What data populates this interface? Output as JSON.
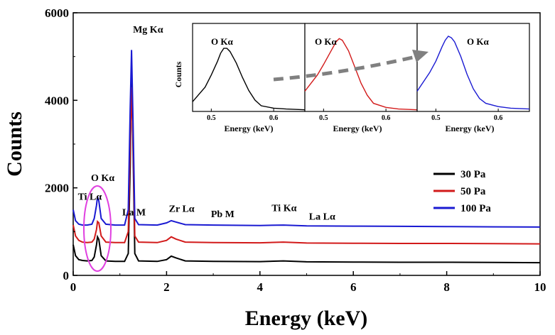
{
  "chart_data": {
    "type": "line",
    "xlabel": "Energy (keV)",
    "ylabel": "Counts",
    "xlim": [
      0,
      10
    ],
    "ylim": [
      0,
      6000
    ],
    "x_ticks": [
      "0",
      "2",
      "4",
      "6",
      "8",
      "10"
    ],
    "y_ticks": [
      "0",
      "2000",
      "4000",
      "6000"
    ],
    "grid": false,
    "legend_position": "right",
    "series": [
      {
        "name": "30 Pa",
        "color": "#000000",
        "points": [
          [
            0,
            700
          ],
          [
            0.05,
            450
          ],
          [
            0.12,
            360
          ],
          [
            0.2,
            340
          ],
          [
            0.3,
            330
          ],
          [
            0.4,
            340
          ],
          [
            0.45,
            420
          ],
          [
            0.5,
            700
          ],
          [
            0.52,
            880
          ],
          [
            0.55,
            820
          ],
          [
            0.6,
            450
          ],
          [
            0.7,
            330
          ],
          [
            0.9,
            320
          ],
          [
            1.1,
            320
          ],
          [
            1.18,
            500
          ],
          [
            1.22,
            2500
          ],
          [
            1.25,
            4700
          ],
          [
            1.28,
            3000
          ],
          [
            1.32,
            500
          ],
          [
            1.4,
            330
          ],
          [
            1.8,
            320
          ],
          [
            2.0,
            360
          ],
          [
            2.1,
            440
          ],
          [
            2.2,
            400
          ],
          [
            2.4,
            330
          ],
          [
            3,
            320
          ],
          [
            4,
            315
          ],
          [
            4.5,
            330
          ],
          [
            5,
            310
          ],
          [
            6,
            305
          ],
          [
            7,
            300
          ],
          [
            8,
            300
          ],
          [
            9,
            295
          ],
          [
            10,
            290
          ]
        ]
      },
      {
        "name": "50 Pa",
        "color": "#d21a1a",
        "points": [
          [
            0,
            1150
          ],
          [
            0.05,
            900
          ],
          [
            0.12,
            800
          ],
          [
            0.2,
            760
          ],
          [
            0.3,
            750
          ],
          [
            0.4,
            760
          ],
          [
            0.45,
            830
          ],
          [
            0.5,
            1050
          ],
          [
            0.52,
            1230
          ],
          [
            0.55,
            1200
          ],
          [
            0.6,
            900
          ],
          [
            0.7,
            760
          ],
          [
            0.9,
            750
          ],
          [
            1.1,
            750
          ],
          [
            1.18,
            1000
          ],
          [
            1.22,
            3000
          ],
          [
            1.25,
            4300
          ],
          [
            1.28,
            3200
          ],
          [
            1.32,
            900
          ],
          [
            1.4,
            760
          ],
          [
            1.8,
            750
          ],
          [
            2.0,
            800
          ],
          [
            2.1,
            880
          ],
          [
            2.2,
            830
          ],
          [
            2.4,
            760
          ],
          [
            3,
            750
          ],
          [
            4,
            745
          ],
          [
            4.5,
            760
          ],
          [
            5,
            740
          ],
          [
            6,
            735
          ],
          [
            7,
            730
          ],
          [
            8,
            730
          ],
          [
            9,
            725
          ],
          [
            10,
            720
          ]
        ]
      },
      {
        "name": "100 Pa",
        "color": "#1a1ad2",
        "points": [
          [
            0,
            1500
          ],
          [
            0.05,
            1250
          ],
          [
            0.12,
            1170
          ],
          [
            0.2,
            1150
          ],
          [
            0.3,
            1150
          ],
          [
            0.4,
            1170
          ],
          [
            0.45,
            1300
          ],
          [
            0.5,
            1600
          ],
          [
            0.52,
            1800
          ],
          [
            0.55,
            1700
          ],
          [
            0.6,
            1300
          ],
          [
            0.7,
            1170
          ],
          [
            0.9,
            1150
          ],
          [
            1.1,
            1150
          ],
          [
            1.18,
            1500
          ],
          [
            1.22,
            3800
          ],
          [
            1.25,
            5150
          ],
          [
            1.28,
            3600
          ],
          [
            1.32,
            1300
          ],
          [
            1.4,
            1160
          ],
          [
            1.8,
            1150
          ],
          [
            2.0,
            1200
          ],
          [
            2.1,
            1250
          ],
          [
            2.2,
            1220
          ],
          [
            2.4,
            1160
          ],
          [
            3,
            1150
          ],
          [
            4,
            1140
          ],
          [
            4.5,
            1150
          ],
          [
            5,
            1130
          ],
          [
            6,
            1125
          ],
          [
            7,
            1120
          ],
          [
            8,
            1115
          ],
          [
            9,
            1110
          ],
          [
            10,
            1105
          ]
        ]
      }
    ],
    "annotations": [
      {
        "text": "Mg Kα",
        "x": 1.28,
        "y": 5550
      },
      {
        "text": "O Kα",
        "x": 0.38,
        "y": 2160
      },
      {
        "text": "Ti Lα",
        "x": 0.1,
        "y": 1730
      },
      {
        "text": "La M",
        "x": 1.05,
        "y": 1370
      },
      {
        "text": "Zr Lα",
        "x": 2.05,
        "y": 1450
      },
      {
        "text": "Pb M",
        "x": 2.95,
        "y": 1330
      },
      {
        "text": "Ti Kα",
        "x": 4.25,
        "y": 1470
      },
      {
        "text": "La Lα",
        "x": 5.05,
        "y": 1270
      }
    ],
    "insets": [
      {
        "title": "O Kα",
        "ylabel": "Counts",
        "xlabel": "Energy (keV)",
        "xlim": [
          0.47,
          0.65
        ],
        "x_ticks": [
          "0.5",
          "0.6"
        ],
        "color": "#000000",
        "points": [
          [
            0.47,
            0.12
          ],
          [
            0.49,
            0.3
          ],
          [
            0.5,
            0.45
          ],
          [
            0.51,
            0.62
          ],
          [
            0.515,
            0.72
          ],
          [
            0.52,
            0.78
          ],
          [
            0.525,
            0.78
          ],
          [
            0.53,
            0.74
          ],
          [
            0.54,
            0.6
          ],
          [
            0.55,
            0.42
          ],
          [
            0.56,
            0.26
          ],
          [
            0.57,
            0.14
          ],
          [
            0.58,
            0.07
          ],
          [
            0.6,
            0.04
          ],
          [
            0.62,
            0.03
          ],
          [
            0.65,
            0.02
          ]
        ]
      },
      {
        "title": "O Kα",
        "ylabel": "",
        "xlabel": "Energy (keV)",
        "xlim": [
          0.47,
          0.65
        ],
        "x_ticks": [
          "0.5",
          "0.6"
        ],
        "color": "#d21a1a",
        "points": [
          [
            0.47,
            0.25
          ],
          [
            0.49,
            0.45
          ],
          [
            0.5,
            0.58
          ],
          [
            0.51,
            0.72
          ],
          [
            0.52,
            0.86
          ],
          [
            0.525,
            0.9
          ],
          [
            0.53,
            0.88
          ],
          [
            0.54,
            0.75
          ],
          [
            0.55,
            0.55
          ],
          [
            0.56,
            0.35
          ],
          [
            0.57,
            0.2
          ],
          [
            0.58,
            0.1
          ],
          [
            0.6,
            0.05
          ],
          [
            0.62,
            0.03
          ],
          [
            0.65,
            0.02
          ]
        ]
      },
      {
        "title": "O Kα",
        "ylabel": "",
        "xlabel": "Energy (keV)",
        "xlim": [
          0.47,
          0.65
        ],
        "x_ticks": [
          "0.5",
          "0.6"
        ],
        "color": "#1a1ad2",
        "points": [
          [
            0.47,
            0.25
          ],
          [
            0.49,
            0.48
          ],
          [
            0.5,
            0.62
          ],
          [
            0.51,
            0.8
          ],
          [
            0.515,
            0.88
          ],
          [
            0.52,
            0.93
          ],
          [
            0.525,
            0.91
          ],
          [
            0.53,
            0.86
          ],
          [
            0.54,
            0.68
          ],
          [
            0.55,
            0.46
          ],
          [
            0.56,
            0.28
          ],
          [
            0.57,
            0.16
          ],
          [
            0.58,
            0.1
          ],
          [
            0.6,
            0.06
          ],
          [
            0.62,
            0.04
          ],
          [
            0.65,
            0.03
          ]
        ]
      }
    ]
  }
}
